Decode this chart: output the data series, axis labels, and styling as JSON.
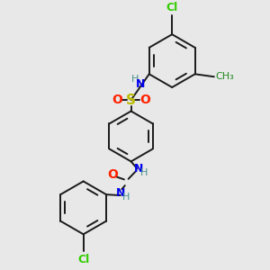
{
  "bg_color": "#e8e8e8",
  "bond_color": "#1a1a1a",
  "N_color": "#0000ee",
  "O_color": "#ff2200",
  "S_color": "#bbbb00",
  "Cl_color": "#33cc00",
  "CH3_color": "#228B22",
  "H_color": "#4a9090",
  "figsize": [
    3.0,
    3.0
  ],
  "dpi": 100,
  "xlim": [
    0,
    10
  ],
  "ylim": [
    0,
    10
  ]
}
